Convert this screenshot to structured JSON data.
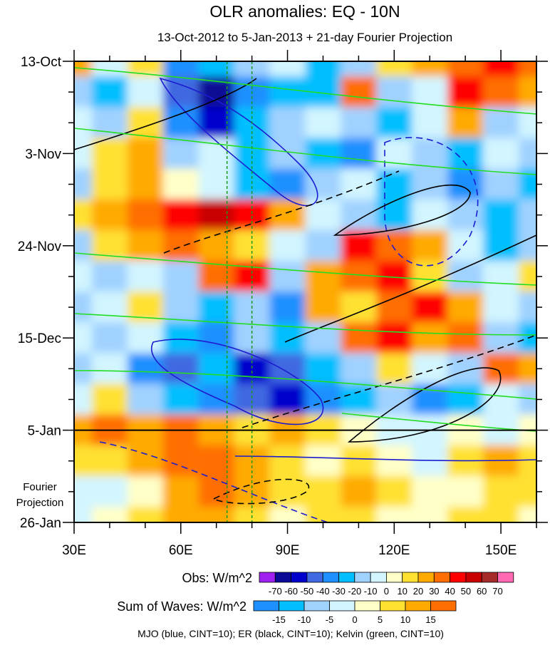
{
  "chart_data": {
    "type": "heatmap",
    "title": "OLR anomalies: EQ - 10N",
    "subtitle": "13-Oct-2012 to 5-Jan-2013 + 21-day Fourier Projection",
    "x_ticks": [
      "30E",
      "60E",
      "90E",
      "120E",
      "150E"
    ],
    "x_tick_values": [
      30,
      60,
      90,
      120,
      150
    ],
    "xlim": [
      30,
      160
    ],
    "y_ticks": [
      "13-Oct",
      "3-Nov",
      "24-Nov",
      "15-Dec",
      "5-Jan",
      "26-Jan"
    ],
    "y_tick_days": [
      0,
      21,
      42,
      63,
      84,
      105
    ],
    "ylim_days": [
      0,
      105
    ],
    "projection_label": "Fourier Projection",
    "projection_start_day": 84,
    "reference_lines_lon": [
      73,
      80
    ],
    "grid_lon": [
      30,
      40,
      50,
      60,
      70,
      80,
      90,
      100,
      110,
      120,
      130,
      140,
      150,
      160
    ],
    "grid_days": [
      0,
      7,
      14,
      21,
      28,
      35,
      42,
      49,
      56,
      63,
      70,
      77,
      84,
      91,
      98,
      105
    ],
    "values": [
      [
        20,
        -10,
        10,
        -40,
        -30,
        -20,
        -10,
        -30,
        -20,
        10,
        20,
        30,
        40,
        30
      ],
      [
        -20,
        -30,
        -10,
        -50,
        -70,
        -40,
        -30,
        -30,
        30,
        -20,
        -10,
        40,
        30,
        20
      ],
      [
        -10,
        -20,
        10,
        -40,
        -60,
        -30,
        -20,
        -10,
        -20,
        -30,
        -10,
        20,
        -20,
        -10
      ],
      [
        -10,
        10,
        20,
        -20,
        -10,
        -30,
        -20,
        -30,
        -40,
        -10,
        -20,
        -30,
        -10,
        -20
      ],
      [
        -20,
        10,
        20,
        0,
        -10,
        -30,
        -40,
        -20,
        -10,
        -30,
        -20,
        -40,
        -20,
        -30
      ],
      [
        10,
        20,
        30,
        40,
        50,
        40,
        20,
        -10,
        -20,
        -30,
        -10,
        -20,
        -30,
        -20
      ],
      [
        -20,
        10,
        20,
        30,
        20,
        10,
        -10,
        -20,
        40,
        30,
        20,
        -10,
        -30,
        -20
      ],
      [
        -10,
        -20,
        -10,
        -20,
        30,
        40,
        -20,
        20,
        30,
        40,
        10,
        -20,
        -10,
        10
      ],
      [
        -20,
        -10,
        10,
        -20,
        -30,
        -20,
        -40,
        20,
        10,
        30,
        40,
        20,
        -10,
        -20
      ],
      [
        -10,
        -20,
        -10,
        -30,
        -40,
        -20,
        -30,
        -20,
        30,
        40,
        20,
        30,
        -20,
        -30
      ],
      [
        -20,
        -10,
        -40,
        -50,
        -30,
        -60,
        -50,
        -30,
        -20,
        10,
        -10,
        -20,
        30,
        20
      ],
      [
        -10,
        10,
        -20,
        -30,
        -40,
        -50,
        -60,
        -40,
        -30,
        -20,
        -40,
        -30,
        -10,
        -20
      ],
      [
        10,
        20,
        10,
        20,
        10,
        5,
        10,
        5,
        0,
        -5,
        -5,
        0,
        -5,
        0
      ],
      [
        5,
        5,
        10,
        15,
        15,
        10,
        5,
        0,
        5,
        0,
        -5,
        5,
        10,
        5
      ],
      [
        -5,
        -5,
        0,
        10,
        15,
        10,
        5,
        5,
        10,
        5,
        0,
        0,
        5,
        5
      ],
      [
        -5,
        0,
        5,
        10,
        10,
        5,
        0,
        5,
        5,
        0,
        0,
        5,
        5,
        0
      ]
    ],
    "colorbars": [
      {
        "label": "Obs: W/m^2",
        "ticks": [
          "-70",
          "-60",
          "-50",
          "-40",
          "-30",
          "-20",
          "-10",
          "0",
          "10",
          "20",
          "30",
          "40",
          "50",
          "60",
          "70"
        ],
        "colors": [
          "#a020f0",
          "#0a0a96",
          "#0000cd",
          "#4169e1",
          "#1e90ff",
          "#00bfff",
          "#a0d2ff",
          "#d2f5ff",
          "#ffffc8",
          "#ffe132",
          "#ffaa00",
          "#ff6e00",
          "#ff0000",
          "#c80000",
          "#a52a2a",
          "#ff69b4"
        ]
      },
      {
        "label": "Sum of Waves: W/m^2",
        "ticks": [
          "-15",
          "-10",
          "-5",
          "0",
          "5",
          "10",
          "15"
        ],
        "colors": [
          "#1e90ff",
          "#00bfff",
          "#a0d2ff",
          "#d2f5ff",
          "#ffffc8",
          "#ffe132",
          "#ffaa00",
          "#ff6e00"
        ]
      }
    ],
    "contour_legend": "MJO (blue, CINT=10); ER (black, CINT=10); Kelvin (green, CINT=10)",
    "contour_colors": {
      "mjo": "#1c1cd0",
      "er": "#000000",
      "kelvin": "#22dd22"
    }
  }
}
